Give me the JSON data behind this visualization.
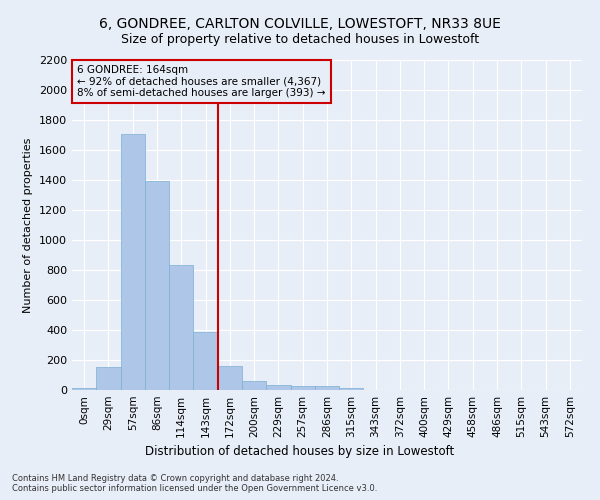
{
  "title": "6, GONDREE, CARLTON COLVILLE, LOWESTOFT, NR33 8UE",
  "subtitle": "Size of property relative to detached houses in Lowestoft",
  "xlabel": "Distribution of detached houses by size in Lowestoft",
  "ylabel": "Number of detached properties",
  "bar_labels": [
    "0sqm",
    "29sqm",
    "57sqm",
    "86sqm",
    "114sqm",
    "143sqm",
    "172sqm",
    "200sqm",
    "229sqm",
    "257sqm",
    "286sqm",
    "315sqm",
    "343sqm",
    "372sqm",
    "400sqm",
    "429sqm",
    "458sqm",
    "486sqm",
    "515sqm",
    "543sqm",
    "572sqm"
  ],
  "bar_values": [
    15,
    155,
    1710,
    1395,
    835,
    390,
    160,
    60,
    35,
    25,
    25,
    15,
    0,
    0,
    0,
    0,
    0,
    0,
    0,
    0,
    0
  ],
  "bar_color": "#aec6e8",
  "bar_edge_color": "#7aafd4",
  "bg_color": "#e8eef7",
  "grid_color": "#ffffff",
  "vline_x": 5.5,
  "vline_color": "#cc0000",
  "annotation_text": "6 GONDREE: 164sqm\n← 92% of detached houses are smaller (4,367)\n8% of semi-detached houses are larger (393) →",
  "annotation_box_color": "#cc0000",
  "ylim": [
    0,
    2200
  ],
  "yticks": [
    0,
    200,
    400,
    600,
    800,
    1000,
    1200,
    1400,
    1600,
    1800,
    2000,
    2200
  ],
  "footnote1": "Contains HM Land Registry data © Crown copyright and database right 2024.",
  "footnote2": "Contains public sector information licensed under the Open Government Licence v3.0.",
  "title_fontsize": 10,
  "subtitle_fontsize": 9
}
